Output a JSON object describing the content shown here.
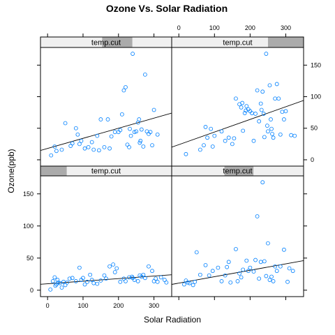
{
  "chart_data": {
    "type": "scatter",
    "title": "Ozone Vs. Solar Radiation",
    "xlabel": "Solar Radiation",
    "ylabel": "Ozone(ppb)",
    "xlim": [
      -20,
      350
    ],
    "ylim": [
      -10,
      178
    ],
    "x_ticks": [
      0,
      100,
      200,
      300
    ],
    "y_ticks": [
      0,
      50,
      100,
      150
    ],
    "grid": false,
    "point_color": "#0080ff",
    "strip_label": "temp.cut",
    "panels": [
      {
        "position": "bottom-left",
        "strip_label": "temp.cut",
        "strip_shade": [
          -0.05,
          0.2
        ],
        "line": {
          "intercept": 10,
          "slope": 0.04
        },
        "points": [
          [
            8,
            1
          ],
          [
            15,
            14
          ],
          [
            20,
            20
          ],
          [
            22,
            7
          ],
          [
            25,
            9
          ],
          [
            28,
            16
          ],
          [
            30,
            12
          ],
          [
            35,
            11
          ],
          [
            40,
            4
          ],
          [
            45,
            13
          ],
          [
            50,
            8
          ],
          [
            55,
            12
          ],
          [
            62,
            18
          ],
          [
            70,
            19
          ],
          [
            80,
            14
          ],
          [
            90,
            35
          ],
          [
            95,
            16
          ],
          [
            100,
            19
          ],
          [
            105,
            9
          ],
          [
            112,
            13
          ],
          [
            120,
            24
          ],
          [
            125,
            16
          ],
          [
            130,
            11
          ],
          [
            140,
            10
          ],
          [
            150,
            15
          ],
          [
            160,
            23
          ],
          [
            165,
            18
          ],
          [
            175,
            37
          ],
          [
            185,
            40
          ],
          [
            190,
            28
          ],
          [
            195,
            34
          ],
          [
            205,
            13
          ],
          [
            215,
            18
          ],
          [
            220,
            14
          ],
          [
            230,
            20
          ],
          [
            238,
            21
          ],
          [
            240,
            19
          ],
          [
            245,
            16
          ],
          [
            255,
            14
          ],
          [
            260,
            23
          ],
          [
            265,
            21
          ],
          [
            270,
            24
          ],
          [
            275,
            19
          ],
          [
            285,
            37
          ],
          [
            295,
            30
          ],
          [
            300,
            14
          ],
          [
            305,
            18
          ],
          [
            310,
            13
          ],
          [
            320,
            20
          ],
          [
            330,
            16
          ],
          [
            335,
            12
          ]
        ]
      },
      {
        "position": "bottom-right",
        "strip_label": "temp.cut",
        "strip_shade": [
          0.4,
          0.62
        ],
        "line": {
          "intercept": 11,
          "slope": 0.1
        },
        "points": [
          [
            15,
            9
          ],
          [
            20,
            15
          ],
          [
            25,
            12
          ],
          [
            30,
            11
          ],
          [
            40,
            8
          ],
          [
            45,
            13
          ],
          [
            50,
            59
          ],
          [
            60,
            24
          ],
          [
            75,
            39
          ],
          [
            85,
            23
          ],
          [
            95,
            30
          ],
          [
            110,
            35
          ],
          [
            120,
            14
          ],
          [
            130,
            23
          ],
          [
            135,
            36
          ],
          [
            140,
            44
          ],
          [
            145,
            12
          ],
          [
            160,
            64
          ],
          [
            165,
            14
          ],
          [
            170,
            26
          ],
          [
            175,
            20
          ],
          [
            180,
            32
          ],
          [
            190,
            46
          ],
          [
            195,
            30
          ],
          [
            200,
            35
          ],
          [
            210,
            29
          ],
          [
            215,
            47
          ],
          [
            220,
            115
          ],
          [
            225,
            18
          ],
          [
            230,
            44
          ],
          [
            235,
            168
          ],
          [
            240,
            45
          ],
          [
            245,
            22
          ],
          [
            250,
            73
          ],
          [
            255,
            16
          ],
          [
            260,
            21
          ],
          [
            265,
            14
          ],
          [
            270,
            37
          ],
          [
            275,
            30
          ],
          [
            285,
            37
          ],
          [
            295,
            63
          ],
          [
            305,
            13
          ],
          [
            310,
            34
          ],
          [
            320,
            30
          ]
        ]
      },
      {
        "position": "top-left",
        "strip_label": "temp.cut",
        "strip_shade": [
          0.47,
          0.7
        ],
        "line": {
          "intercept": 18,
          "slope": 0.16
        },
        "points": [
          [
            10,
            7
          ],
          [
            20,
            21
          ],
          [
            25,
            14
          ],
          [
            40,
            16
          ],
          [
            50,
            58
          ],
          [
            65,
            22
          ],
          [
            70,
            26
          ],
          [
            80,
            50
          ],
          [
            85,
            40
          ],
          [
            90,
            25
          ],
          [
            95,
            30
          ],
          [
            105,
            18
          ],
          [
            115,
            20
          ],
          [
            125,
            28
          ],
          [
            130,
            16
          ],
          [
            140,
            38
          ],
          [
            145,
            15
          ],
          [
            150,
            64
          ],
          [
            160,
            20
          ],
          [
            170,
            64
          ],
          [
            175,
            18
          ],
          [
            180,
            37
          ],
          [
            190,
            44
          ],
          [
            200,
            44
          ],
          [
            205,
            47
          ],
          [
            210,
            72
          ],
          [
            215,
            110
          ],
          [
            220,
            115
          ],
          [
            225,
            24
          ],
          [
            230,
            20
          ],
          [
            232,
            49
          ],
          [
            235,
            38
          ],
          [
            240,
            168
          ],
          [
            245,
            44
          ],
          [
            250,
            45
          ],
          [
            255,
            59
          ],
          [
            258,
            64
          ],
          [
            260,
            27
          ],
          [
            262,
            30
          ],
          [
            265,
            48
          ],
          [
            270,
            21
          ],
          [
            275,
            135
          ],
          [
            280,
            45
          ],
          [
            285,
            41
          ],
          [
            290,
            44
          ],
          [
            295,
            23
          ],
          [
            300,
            79
          ],
          [
            310,
            40
          ]
        ]
      },
      {
        "position": "top-right",
        "strip_label": "temp.cut",
        "strip_shade": [
          0.73,
          1.0
        ],
        "line": {
          "intercept": 24,
          "slope": 0.2
        },
        "points": [
          [
            20,
            9
          ],
          [
            60,
            16
          ],
          [
            70,
            23
          ],
          [
            75,
            52
          ],
          [
            80,
            35
          ],
          [
            90,
            49
          ],
          [
            95,
            21
          ],
          [
            100,
            38
          ],
          [
            120,
            45
          ],
          [
            130,
            30
          ],
          [
            140,
            35
          ],
          [
            150,
            25
          ],
          [
            155,
            34
          ],
          [
            160,
            97
          ],
          [
            170,
            88
          ],
          [
            175,
            83
          ],
          [
            178,
            90
          ],
          [
            180,
            46
          ],
          [
            185,
            74
          ],
          [
            188,
            78
          ],
          [
            190,
            85
          ],
          [
            195,
            80
          ],
          [
            200,
            77
          ],
          [
            205,
            74
          ],
          [
            210,
            30
          ],
          [
            215,
            73
          ],
          [
            220,
            110
          ],
          [
            225,
            61
          ],
          [
            230,
            89
          ],
          [
            232,
            79
          ],
          [
            235,
            108
          ],
          [
            238,
            73
          ],
          [
            240,
            36
          ],
          [
            245,
            168
          ],
          [
            248,
            54
          ],
          [
            250,
            45
          ],
          [
            255,
            118
          ],
          [
            258,
            64
          ],
          [
            260,
            49
          ],
          [
            262,
            41
          ],
          [
            265,
            35
          ],
          [
            270,
            97
          ],
          [
            275,
            120
          ],
          [
            280,
            97
          ],
          [
            285,
            40
          ],
          [
            290,
            76
          ],
          [
            295,
            64
          ],
          [
            300,
            77
          ],
          [
            315,
            39
          ],
          [
            325,
            38
          ]
        ]
      }
    ]
  }
}
